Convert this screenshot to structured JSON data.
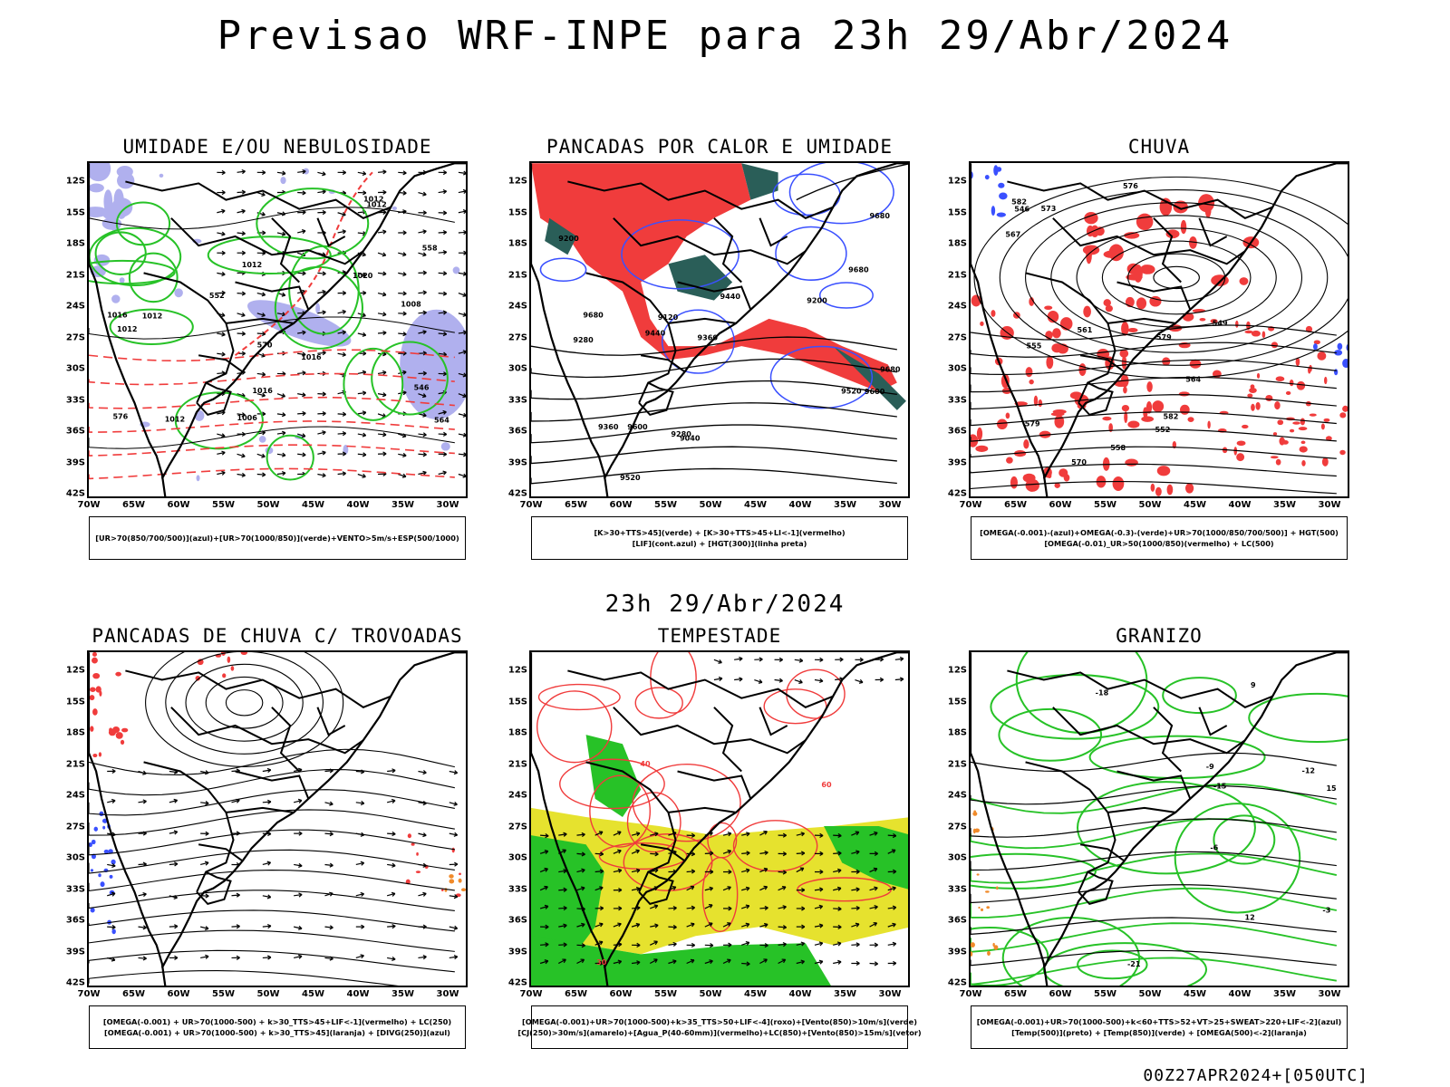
{
  "main_title": "Previsao WRF-INPE  para 23h 29/Abr/2024",
  "mid_title": "23h 29/Abr/2024",
  "footer": "00Z27APR2024+[050UTC]",
  "axes": {
    "lat": [
      "12S",
      "15S",
      "18S",
      "21S",
      "24S",
      "27S",
      "30S",
      "33S",
      "36S",
      "39S",
      "42S"
    ],
    "lon": [
      "70W",
      "65W",
      "60W",
      "55W",
      "50W",
      "45W",
      "40W",
      "35W",
      "30W"
    ]
  },
  "colors": {
    "red": "#f03c3c",
    "green": "#27c227",
    "darkteal": "#2a5e58",
    "blue": "#3a50ff",
    "lavender": "#b0b0ee",
    "yellow": "#e6e22e",
    "orange": "#f08a2a",
    "black": "#000000"
  },
  "panels": [
    {
      "id": "umidade",
      "title": "UMIDADE E/OU NEBULOSIDADE",
      "legend": [
        "[UR>70(850/700/500)](azul)+[UR>70(1000/850)](verde)+VENTO>5m/s+ESP(500/1000)"
      ],
      "labels": [
        "1012",
        "1012",
        "1012",
        "1016",
        "1020",
        "1012",
        "570",
        "576",
        "1016",
        "1012",
        "564",
        "558",
        "552",
        "546",
        "1008",
        "1006",
        "1012",
        "1016"
      ]
    },
    {
      "id": "pancadas-calor",
      "title": "PANCADAS POR CALOR E UMIDADE",
      "legend": [
        "[K>30+TTS>45](verde) + [K>30+TTS>45+LI<-1](vermelho)",
        "[LIF](cont.azul) + [HGT(300)](linha preta)"
      ],
      "labels": [
        "9680",
        "9680",
        "9680",
        "9680",
        "9600",
        "9600",
        "9520",
        "9520",
        "9440",
        "9440",
        "9360",
        "9360",
        "9280",
        "9280",
        "9200",
        "9200",
        "9120",
        "9040"
      ]
    },
    {
      "id": "chuva",
      "title": "CHUVA",
      "legend": [
        "[OMEGA(-0.001)-(azul)+OMEGA(-0.3)-(verde)+UR>70(1000/850/700/500)] + HGT(500)",
        "[OMEGA(-0.01)_UR>50(1000/850)(vermelho) + LC(500)"
      ],
      "labels": [
        "582",
        "582",
        "579",
        "579",
        "576",
        "573",
        "570",
        "567",
        "564",
        "561",
        "558",
        "555",
        "552",
        "549",
        "546"
      ]
    },
    {
      "id": "pancadas-trovoadas",
      "title": "PANCADAS DE CHUVA C/ TROVOADAS",
      "legend": [
        "[OMEGA(-0.001) + UR>70(1000-500) + k>30_TTS>45+LIF<-1](vermelho) + LC(250)",
        "[OMEGA(-0.001) + UR>70(1000-500) + k>30_TTS>45](laranja) + [DIVG(250)](azul)"
      ],
      "labels": []
    },
    {
      "id": "tempestade",
      "title": "TEMPESTADE",
      "legend": [
        "[OMEGA(-0.001)+UR>70(1000-500)+k>35_TTS>50+LIF<-4](roxo)+[Vento(850)>10m/s](verde)",
        "[CJ(250)>30m/s](amarelo)+[Agua_P(40-60mm)](vermelho)+LC(850)+[Vento(850)>15m/s](vetor)"
      ],
      "labels": [
        "60",
        "40",
        "30"
      ]
    },
    {
      "id": "granizo",
      "title": "GRANIZO",
      "legend": [
        "[OMEGA(-0.001)+UR>70(1000-500)+k<60+TTS>52+VT>25+SWEAT>220+LIF<-2](azul)",
        "[Temp(500)](preto) + [Temp(850)](verde) + [OMEGA(500)<-2](laranja)"
      ],
      "labels": [
        "-3",
        "-6",
        "-9",
        "-12",
        "-15",
        "-18",
        "-21",
        "15",
        "12",
        "9"
      ]
    }
  ]
}
